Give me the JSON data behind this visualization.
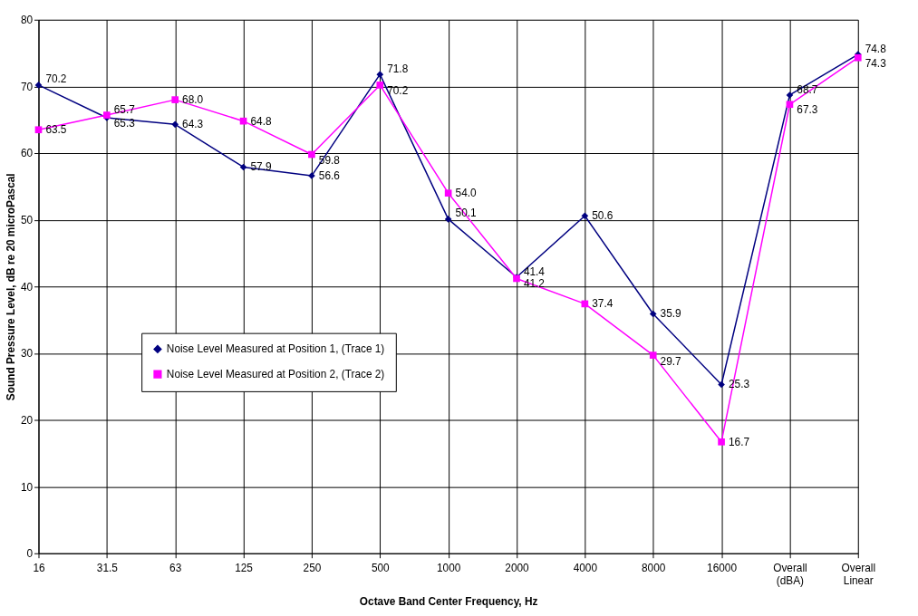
{
  "chart_data": {
    "type": "line",
    "xlabel": "Octave Band Center Frequency, Hz",
    "ylabel": "Sound Pressure Level, dB re 20 microPascal",
    "categories": [
      "16",
      "31.5",
      "63",
      "125",
      "250",
      "500",
      "1000",
      "2000",
      "4000",
      "8000",
      "16000",
      "Overall\n(dBA)",
      "Overall\nLinear"
    ],
    "series": [
      {
        "name": "Noise Level Measured at Position 1, (Trace 1)",
        "color": "#000080",
        "marker": "diamond",
        "values": [
          70.2,
          65.3,
          64.3,
          57.9,
          56.6,
          71.8,
          50.1,
          41.4,
          50.6,
          35.9,
          25.3,
          68.7,
          74.8
        ],
        "value_labels": [
          "70.2",
          "65.3",
          "64.3",
          "57.9",
          "56.6",
          "71.8",
          "50.1",
          "41.4",
          "50.6",
          "35.9",
          "25.3",
          "68.7",
          "74.8"
        ]
      },
      {
        "name": "Noise Level Measured at Position 2, (Trace 2)",
        "color": "#ff00ff",
        "marker": "square",
        "values": [
          63.5,
          65.7,
          68.0,
          64.8,
          59.8,
          70.2,
          54.0,
          41.2,
          37.4,
          29.7,
          16.7,
          67.3,
          74.3
        ],
        "value_labels": [
          "63.5",
          "65.7",
          "68.0",
          "64.8",
          "59.8",
          "70.2",
          "54.0",
          "41.2",
          "37.4",
          "29.7",
          "16.7",
          "67.3",
          "74.3"
        ]
      }
    ],
    "ylim": [
      0,
      80
    ],
    "yticks": [
      0,
      10,
      20,
      30,
      40,
      50,
      60,
      70,
      80
    ],
    "grid": true,
    "legend": "left",
    "line_style": "solid"
  }
}
